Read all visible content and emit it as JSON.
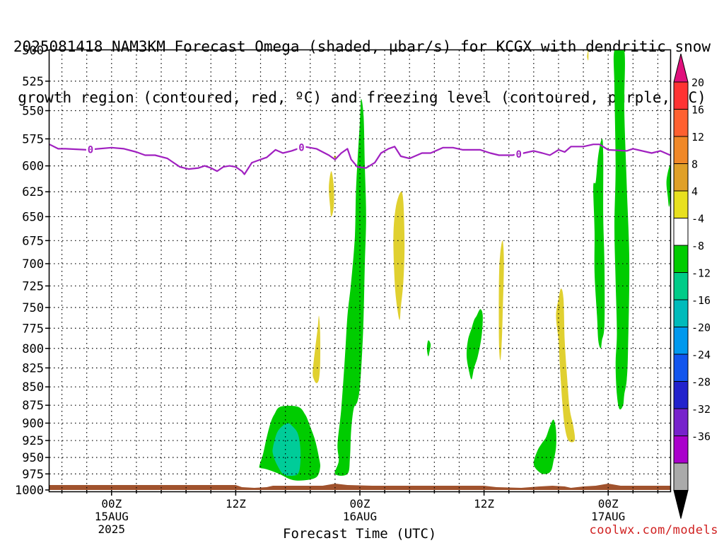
{
  "title_lines": [
    "2025081418 NAM3KM Forecast Omega (shaded, µbar/s) for KCGX with dendritic snow",
    "growth region (contoured, red, ºC) and freezing level (contoured, purple, ºC)"
  ],
  "credit": "coolwx.com/models",
  "chart_data": {
    "type": "contour",
    "title": "2025081418 NAM3KM Forecast Omega (shaded, µbar/s) for KCGX with dendritic snow growth region (contoured, red, ºC) and freezing level (contoured, purple, ºC)",
    "xlabel": "Forecast Time (UTC)",
    "ylabel": "",
    "x_range_hours": [
      -5,
      45
    ],
    "y_range_hpa": [
      500,
      1000
    ],
    "y_ticks": [
      500,
      525,
      550,
      575,
      600,
      625,
      650,
      675,
      700,
      725,
      750,
      775,
      800,
      825,
      850,
      875,
      900,
      925,
      950,
      975,
      1000
    ],
    "x_ticks": [
      {
        "hour": 0,
        "label": "00Z",
        "sub1": "15AUG",
        "sub2": "2025"
      },
      {
        "hour": 10,
        "label": "12Z",
        "sub1": "",
        "sub2": ""
      },
      {
        "hour": 20,
        "label": "00Z",
        "sub1": "16AUG",
        "sub2": ""
      },
      {
        "hour": 30,
        "label": "12Z",
        "sub1": "",
        "sub2": ""
      },
      {
        "hour": 40,
        "label": "00Z",
        "sub1": "17AUG",
        "sub2": ""
      }
    ],
    "freezing_level": {
      "label": "0",
      "color": "#a020c0",
      "label_hours": [
        -1.7,
        15.3,
        32.8
      ],
      "points": [
        [
          -5,
          580
        ],
        [
          -4.3,
          584
        ],
        [
          -3.7,
          584
        ],
        [
          -2,
          585
        ],
        [
          0,
          583
        ],
        [
          1,
          584
        ],
        [
          2,
          587
        ],
        [
          2.7,
          590
        ],
        [
          3.5,
          590
        ],
        [
          4.5,
          593
        ],
        [
          5,
          597
        ],
        [
          5.5,
          601
        ],
        [
          6.2,
          603
        ],
        [
          7,
          602
        ],
        [
          7.5,
          600
        ],
        [
          8,
          602
        ],
        [
          8.5,
          605
        ],
        [
          9,
          601
        ],
        [
          9.5,
          600
        ],
        [
          10,
          601
        ],
        [
          10.5,
          605
        ],
        [
          10.7,
          608
        ],
        [
          11.3,
          597
        ],
        [
          12,
          594
        ],
        [
          12.5,
          592
        ],
        [
          13.2,
          585
        ],
        [
          13.8,
          588
        ],
        [
          14.5,
          586
        ],
        [
          15.5,
          582
        ],
        [
          16.5,
          584
        ],
        [
          17.5,
          590
        ],
        [
          18,
          594
        ],
        [
          18.5,
          588
        ],
        [
          19,
          584
        ],
        [
          19.3,
          594
        ],
        [
          19.8,
          601
        ],
        [
          20.5,
          602
        ],
        [
          21.2,
          597
        ],
        [
          21.7,
          588
        ],
        [
          22.3,
          584
        ],
        [
          22.8,
          582
        ],
        [
          23.3,
          591
        ],
        [
          24,
          593
        ],
        [
          25,
          588
        ],
        [
          25.7,
          588
        ],
        [
          26.7,
          583
        ],
        [
          27.5,
          583
        ],
        [
          28.3,
          585
        ],
        [
          29.7,
          585
        ],
        [
          30.5,
          588
        ],
        [
          31.2,
          590
        ],
        [
          32.3,
          590
        ],
        [
          33.2,
          588
        ],
        [
          34,
          586
        ],
        [
          34.7,
          588
        ],
        [
          35.3,
          590
        ],
        [
          36,
          585
        ],
        [
          36.5,
          587
        ],
        [
          37,
          582
        ],
        [
          38,
          582
        ],
        [
          38.8,
          580
        ],
        [
          39.3,
          580
        ],
        [
          40,
          585
        ],
        [
          41.5,
          586
        ],
        [
          42,
          584
        ],
        [
          43.5,
          588
        ],
        [
          44.2,
          586
        ],
        [
          45,
          590
        ]
      ]
    },
    "surface_fill_color": "#a0522d",
    "omega_regions": [
      {
        "color": "#00cc00",
        "points": [
          [
            18,
            975
          ],
          [
            18.3,
            955
          ],
          [
            18.2,
            930
          ],
          [
            18.5,
            880
          ],
          [
            18.8,
            810
          ],
          [
            19,
            760
          ],
          [
            19.3,
            720
          ],
          [
            19.6,
            670
          ],
          [
            19.7,
            620
          ],
          [
            20,
            560
          ],
          [
            20.1,
            540
          ],
          [
            20.3,
            555
          ],
          [
            20.4,
            600
          ],
          [
            20.5,
            650
          ],
          [
            20.4,
            700
          ],
          [
            20.3,
            760
          ],
          [
            20.2,
            800
          ],
          [
            20,
            850
          ],
          [
            19.8,
            870
          ],
          [
            19.5,
            880
          ],
          [
            19.3,
            910
          ],
          [
            19.2,
            950
          ],
          [
            19,
            975
          ]
        ]
      },
      {
        "color": "#00cc00",
        "points": [
          [
            11.9,
            963
          ],
          [
            12.2,
            945
          ],
          [
            12.5,
            920
          ],
          [
            12.8,
            900
          ],
          [
            13.1,
            888
          ],
          [
            13.6,
            877
          ],
          [
            15,
            877
          ],
          [
            15.6,
            888
          ],
          [
            16,
            905
          ],
          [
            16.4,
            925
          ],
          [
            16.7,
            950
          ],
          [
            16.8,
            965
          ],
          [
            16.5,
            980
          ],
          [
            15.5,
            985
          ],
          [
            14.5,
            984
          ],
          [
            13.5,
            975
          ],
          [
            12.5,
            968
          ],
          [
            12,
            966
          ]
        ]
      },
      {
        "color": "#00cc99",
        "points": [
          [
            13,
            935
          ],
          [
            13.3,
            915
          ],
          [
            13.7,
            905
          ],
          [
            14.2,
            900
          ],
          [
            14.6,
            905
          ],
          [
            15,
            915
          ],
          [
            15.2,
            935
          ],
          [
            15.2,
            960
          ],
          [
            15,
            975
          ],
          [
            14.4,
            978
          ],
          [
            13.8,
            975
          ],
          [
            13.3,
            960
          ],
          [
            13,
            945
          ]
        ]
      },
      {
        "color": "#00cc00",
        "points": [
          [
            29.4,
            760
          ],
          [
            29.7,
            752
          ],
          [
            29.9,
            760
          ],
          [
            29.8,
            785
          ],
          [
            29.5,
            810
          ],
          [
            29.2,
            825
          ],
          [
            29,
            840
          ],
          [
            28.8,
            830
          ],
          [
            28.6,
            810
          ],
          [
            28.7,
            790
          ],
          [
            29,
            775
          ],
          [
            29.2,
            765
          ]
        ]
      },
      {
        "color": "#00cc00",
        "points": [
          [
            25.5,
            790
          ],
          [
            25.7,
            795
          ],
          [
            25.6,
            805
          ],
          [
            25.5,
            810
          ],
          [
            25.4,
            800
          ]
        ]
      },
      {
        "color": "#00cc00",
        "points": [
          [
            34,
            960
          ],
          [
            34.3,
            940
          ],
          [
            34.7,
            928
          ],
          [
            35,
            920
          ],
          [
            35.3,
            905
          ],
          [
            35.6,
            895
          ],
          [
            35.8,
            910
          ],
          [
            35.8,
            935
          ],
          [
            35.6,
            955
          ],
          [
            35.4,
            970
          ],
          [
            35,
            975
          ],
          [
            34.5,
            973
          ]
        ]
      },
      {
        "color": "#00cc00",
        "points": [
          [
            39,
            615
          ],
          [
            39.2,
            590
          ],
          [
            39.5,
            575
          ],
          [
            39.6,
            590
          ],
          [
            39.6,
            650
          ],
          [
            39.7,
            700
          ],
          [
            39.7,
            770
          ],
          [
            39.5,
            790
          ],
          [
            39.4,
            800
          ],
          [
            39.2,
            790
          ],
          [
            39.1,
            760
          ],
          [
            38.9,
            710
          ],
          [
            38.9,
            665
          ],
          [
            38.8,
            620
          ]
        ]
      },
      {
        "color": "#00cc00",
        "points": [
          [
            40.5,
            530
          ],
          [
            40.5,
            500
          ],
          [
            41.3,
            500
          ],
          [
            41.3,
            550
          ],
          [
            41.5,
            620
          ],
          [
            41.7,
            700
          ],
          [
            41.6,
            800
          ],
          [
            41.5,
            840
          ],
          [
            41.3,
            860
          ],
          [
            41.2,
            875
          ],
          [
            40.9,
            880
          ],
          [
            40.7,
            860
          ],
          [
            40.6,
            820
          ],
          [
            40.7,
            780
          ],
          [
            40.6,
            720
          ],
          [
            40.5,
            660
          ],
          [
            40.6,
            600
          ]
        ]
      },
      {
        "color": "#00cc00",
        "points": [
          [
            44.7,
            614
          ],
          [
            45,
            600
          ],
          [
            45,
            630
          ],
          [
            44.9,
            640
          ],
          [
            44.8,
            630
          ]
        ]
      },
      {
        "color": "#e0d030",
        "points": [
          [
            17.5,
            620
          ],
          [
            17.7,
            605
          ],
          [
            17.9,
            620
          ],
          [
            17.9,
            640
          ],
          [
            17.7,
            650
          ],
          [
            17.6,
            640
          ]
        ]
      },
      {
        "color": "#e0d030",
        "points": [
          [
            17.9,
            592
          ],
          [
            18,
            590
          ],
          [
            18.1,
            593
          ]
        ]
      },
      {
        "color": "#e0d030",
        "points": [
          [
            16.2,
            830
          ],
          [
            16.4,
            800
          ],
          [
            16.6,
            775
          ],
          [
            16.7,
            760
          ],
          [
            16.8,
            780
          ],
          [
            16.8,
            820
          ],
          [
            16.7,
            840
          ],
          [
            16.5,
            845
          ],
          [
            16.3,
            840
          ]
        ]
      },
      {
        "color": "#e0d030",
        "points": [
          [
            22.7,
            670
          ],
          [
            22.9,
            640
          ],
          [
            23.3,
            625
          ],
          [
            23.5,
            635
          ],
          [
            23.6,
            680
          ],
          [
            23.5,
            720
          ],
          [
            23.3,
            750
          ],
          [
            23.2,
            765
          ],
          [
            23,
            750
          ],
          [
            22.8,
            720
          ]
        ]
      },
      {
        "color": "#e0d030",
        "points": [
          [
            31.2,
            720
          ],
          [
            31.3,
            690
          ],
          [
            31.5,
            675
          ],
          [
            31.6,
            700
          ],
          [
            31.5,
            760
          ],
          [
            31.4,
            800
          ],
          [
            31.3,
            815
          ],
          [
            31.2,
            790
          ]
        ]
      },
      {
        "color": "#e0d030",
        "points": [
          [
            35.8,
            760
          ],
          [
            36,
            740
          ],
          [
            36.2,
            728
          ],
          [
            36.4,
            740
          ],
          [
            36.5,
            790
          ],
          [
            36.7,
            840
          ],
          [
            36.9,
            880
          ],
          [
            37.2,
            905
          ],
          [
            37.3,
            925
          ],
          [
            36.8,
            925
          ],
          [
            36.5,
            905
          ],
          [
            36.3,
            870
          ],
          [
            36.1,
            820
          ],
          [
            36,
            790
          ]
        ]
      },
      {
        "color": "#e0d030",
        "points": [
          [
            38.3,
            505
          ],
          [
            38.4,
            500
          ],
          [
            38.4,
            508
          ]
        ]
      }
    ],
    "colorbar": {
      "labels": [
        "20",
        "16",
        "12",
        "8",
        "4",
        "-4",
        "-8",
        "-12",
        "-16",
        "-20",
        "-24",
        "-28",
        "-32",
        "-36"
      ],
      "colors": [
        "#ff3333",
        "#ff6030",
        "#f08828",
        "#e0a028",
        "#e8e020",
        "#ffffff",
        "#00cc00",
        "#00cc88",
        "#00bbbb",
        "#0099ee",
        "#1155ee",
        "#2222cc",
        "#7722cc",
        "#aa00cc",
        "#aaaaaa"
      ],
      "top_triangle": "#e0107c",
      "bottom_triangle": "#000000"
    }
  }
}
